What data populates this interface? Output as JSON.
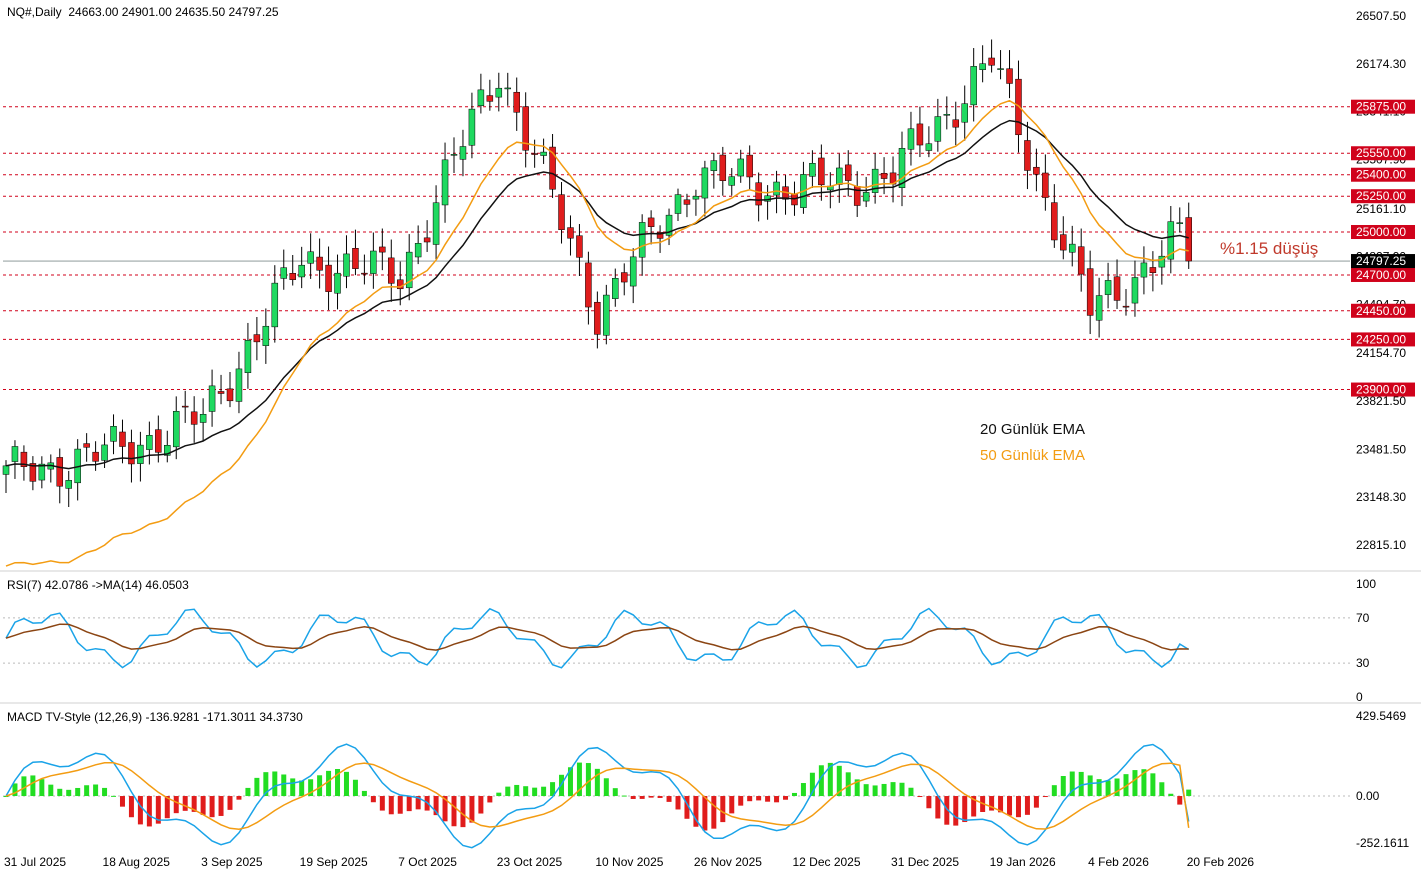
{
  "header": {
    "symbol": "NQ#,Daily",
    "ohlc": "24663.00 24901.00 24635.50 24797.25"
  },
  "legend": {
    "ema20": "20 Günlük EMA",
    "ema50": "50 Günlük EMA"
  },
  "annotation": "%1.15 düşüş",
  "colors": {
    "bull": "#1fd960",
    "bear": "#e01c1c",
    "ema20": "#111111",
    "ema50": "#f39c12",
    "level": "#d0021b",
    "rsi": "#1aa3e8",
    "rsi_ma": "#8b4513",
    "macd": "#1aa3e8",
    "signal": "#f39c12",
    "hist_pos": "#22dd22",
    "hist_neg": "#e01c1c",
    "current_price_bg": "#000000"
  },
  "rsi_panel": {
    "label": "RSI(7) 42.0786  ->MA(14) 46.0503",
    "ticks": [
      "100",
      "70",
      "30",
      "0"
    ],
    "ylim": [
      0,
      100
    ]
  },
  "macd_panel": {
    "label": "MACD TV-Style (12,26,9) -136.9281 -171.3011 34.3730",
    "ticks": [
      "429.5469",
      "0.00",
      "-252.1611"
    ]
  },
  "chart_data": {
    "type": "candlestick",
    "price_ticks": [
      "26507.50",
      "26174.30",
      "25841.10",
      "25507.90",
      "25161.10",
      "24827.90",
      "24494.70",
      "24154.70",
      "23821.50",
      "23481.50",
      "23148.30",
      "22815.10"
    ],
    "price_ylim": [
      22640,
      26620
    ],
    "levels": [
      "25875.00",
      "25550.00",
      "25400.00",
      "25250.00",
      "25000.00",
      "24700.00",
      "24450.00",
      "24250.00",
      "23900.00"
    ],
    "current_price": "24797.25",
    "date_labels": [
      "31 Jul 2025",
      "18 Aug 2025",
      "3 Sep 2025",
      "19 Sep 2025",
      "7 Oct 2025",
      "23 Oct 2025",
      "10 Nov 2025",
      "26 Nov 2025",
      "12 Dec 2025",
      "31 Dec 2025",
      "19 Jan 2026",
      "4 Feb 2026",
      "20 Feb 2026"
    ],
    "key_points": [
      {
        "date": "31 Jul 2025",
        "close": 23300
      },
      {
        "date": "18 Aug 2025",
        "close": 23450
      },
      {
        "date": "3 Sep 2025",
        "close": 23700
      },
      {
        "date": "19 Sep 2025",
        "close": 24800
      },
      {
        "date": "7 Oct 2025",
        "close": 24700
      },
      {
        "date": "23 Oct 2025",
        "close": 26150
      },
      {
        "date": "10 Nov 2025",
        "close": 24450
      },
      {
        "date": "26 Nov 2025",
        "close": 25400
      },
      {
        "date": "12 Dec 2025",
        "close": 25300
      },
      {
        "date": "31 Dec 2025",
        "close": 25400
      },
      {
        "date": "19 Jan 2026",
        "close": 26200
      },
      {
        "date": "4 Feb 2026",
        "close": 24450
      },
      {
        "date": "20 Feb 2026",
        "close": 25000
      }
    ]
  }
}
